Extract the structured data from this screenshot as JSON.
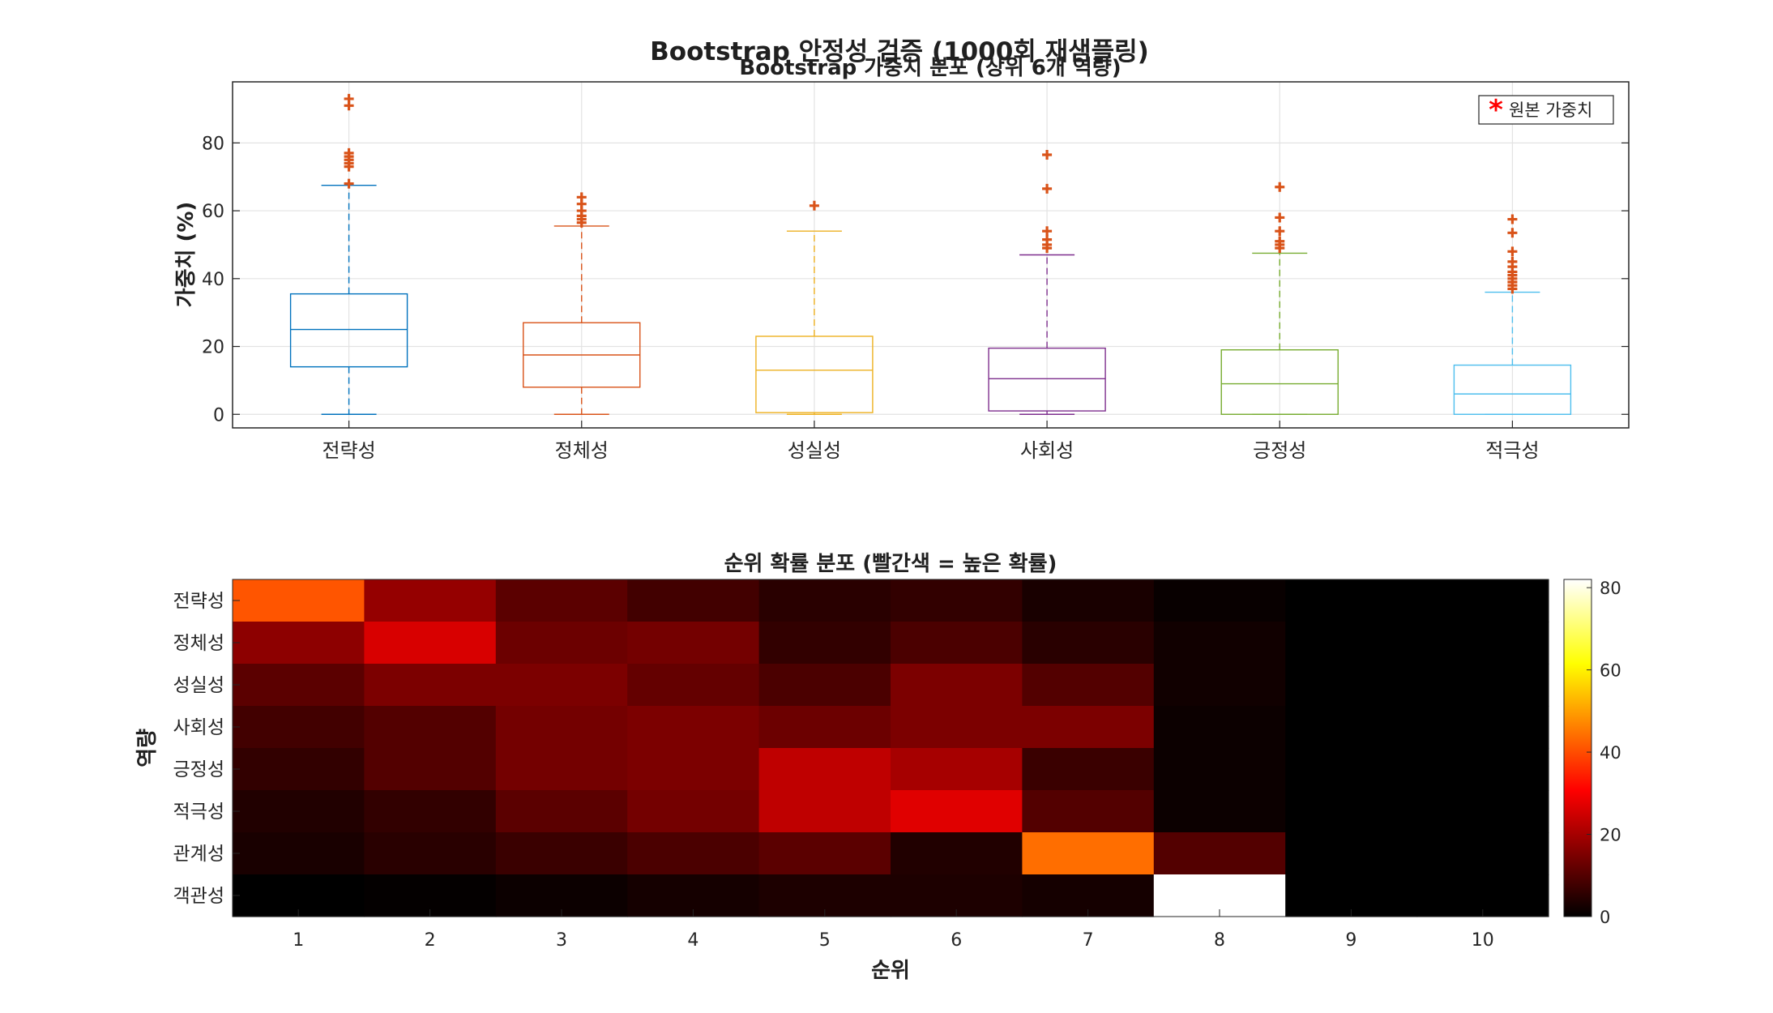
{
  "figure": {
    "suptitle": "Bootstrap 안정성 검증 (1000회 재샘플링)"
  },
  "chart_data": [
    {
      "type": "box",
      "title": "Bootstrap 가중치 분포 (상위 6개 역량)",
      "xlabel": "",
      "ylabel": "가중치 (%)",
      "ylim": [
        -4,
        98
      ],
      "yticks": [
        0,
        20,
        40,
        60,
        80
      ],
      "grid": true,
      "legend": {
        "label": "원본 가중치",
        "placement": "top-right",
        "marker": "red-asterisk"
      },
      "categories": [
        "전략성",
        "정체성",
        "성실성",
        "사회성",
        "긍정성",
        "적극성"
      ],
      "colors": [
        "#0072BD",
        "#D95319",
        "#EDB120",
        "#7E2F8E",
        "#77AC30",
        "#4DBEEE"
      ],
      "outlier_color": "#D95319",
      "boxes": [
        {
          "q1": 14,
          "median": 25,
          "q3": 35.5,
          "whisker_low": 0,
          "whisker_high": 67.5,
          "outliers": [
            68,
            73,
            74,
            75,
            76,
            77,
            91,
            93
          ]
        },
        {
          "q1": 8,
          "median": 17.5,
          "q3": 27,
          "whisker_low": 0,
          "whisker_high": 55.5,
          "outliers": [
            56.5,
            57.5,
            58.5,
            60,
            62,
            64
          ]
        },
        {
          "q1": 0.5,
          "median": 13,
          "q3": 23,
          "whisker_low": 0,
          "whisker_high": 54,
          "outliers": [
            61.5
          ]
        },
        {
          "q1": 1,
          "median": 10.5,
          "q3": 19.5,
          "whisker_low": 0,
          "whisker_high": 47,
          "outliers": [
            49,
            50,
            51.5,
            54,
            66.5,
            76.5
          ]
        },
        {
          "q1": 0,
          "median": 9,
          "q3": 19,
          "whisker_low": 0,
          "whisker_high": 47.5,
          "outliers": [
            49,
            50,
            51,
            54,
            58,
            67
          ]
        },
        {
          "q1": 0,
          "median": 6,
          "q3": 14.5,
          "whisker_low": 0,
          "whisker_high": 36,
          "outliers": [
            37,
            38,
            39,
            40,
            41,
            42,
            43.5,
            45,
            48,
            53.5,
            57.5
          ]
        }
      ]
    },
    {
      "type": "heatmap",
      "title": "순위 확률 분포 (빨간색 = 높은 확률)",
      "xlabel": "순위",
      "ylabel": "역량",
      "x": [
        1,
        2,
        3,
        4,
        5,
        6,
        7,
        8,
        9,
        10
      ],
      "y": [
        "전략성",
        "정체성",
        "성실성",
        "사회성",
        "긍정성",
        "적극성",
        "관계성",
        "객관성"
      ],
      "colormap": "hot",
      "clim": [
        0,
        82
      ],
      "colorbar_ticks": [
        0,
        20,
        40,
        60,
        80
      ],
      "values": [
        [
          41,
          18,
          11,
          8,
          5,
          6,
          3,
          1,
          0,
          0
        ],
        [
          17,
          26,
          13,
          14,
          6,
          9,
          5,
          2,
          0,
          0
        ],
        [
          11,
          15,
          15,
          12,
          9,
          15,
          10,
          2,
          0,
          0
        ],
        [
          8,
          10,
          14,
          15,
          13,
          15,
          15,
          1.5,
          0,
          0
        ],
        [
          6,
          10,
          14,
          15,
          23,
          20,
          7,
          1.5,
          0,
          0
        ],
        [
          4,
          6,
          11,
          14,
          23,
          27,
          10,
          1.5,
          0,
          0
        ],
        [
          3,
          5,
          7,
          9,
          11,
          4,
          44,
          10,
          0,
          0
        ],
        [
          0,
          0.5,
          1.5,
          2.5,
          3.5,
          3.5,
          2.5,
          82,
          0,
          0
        ]
      ]
    }
  ]
}
